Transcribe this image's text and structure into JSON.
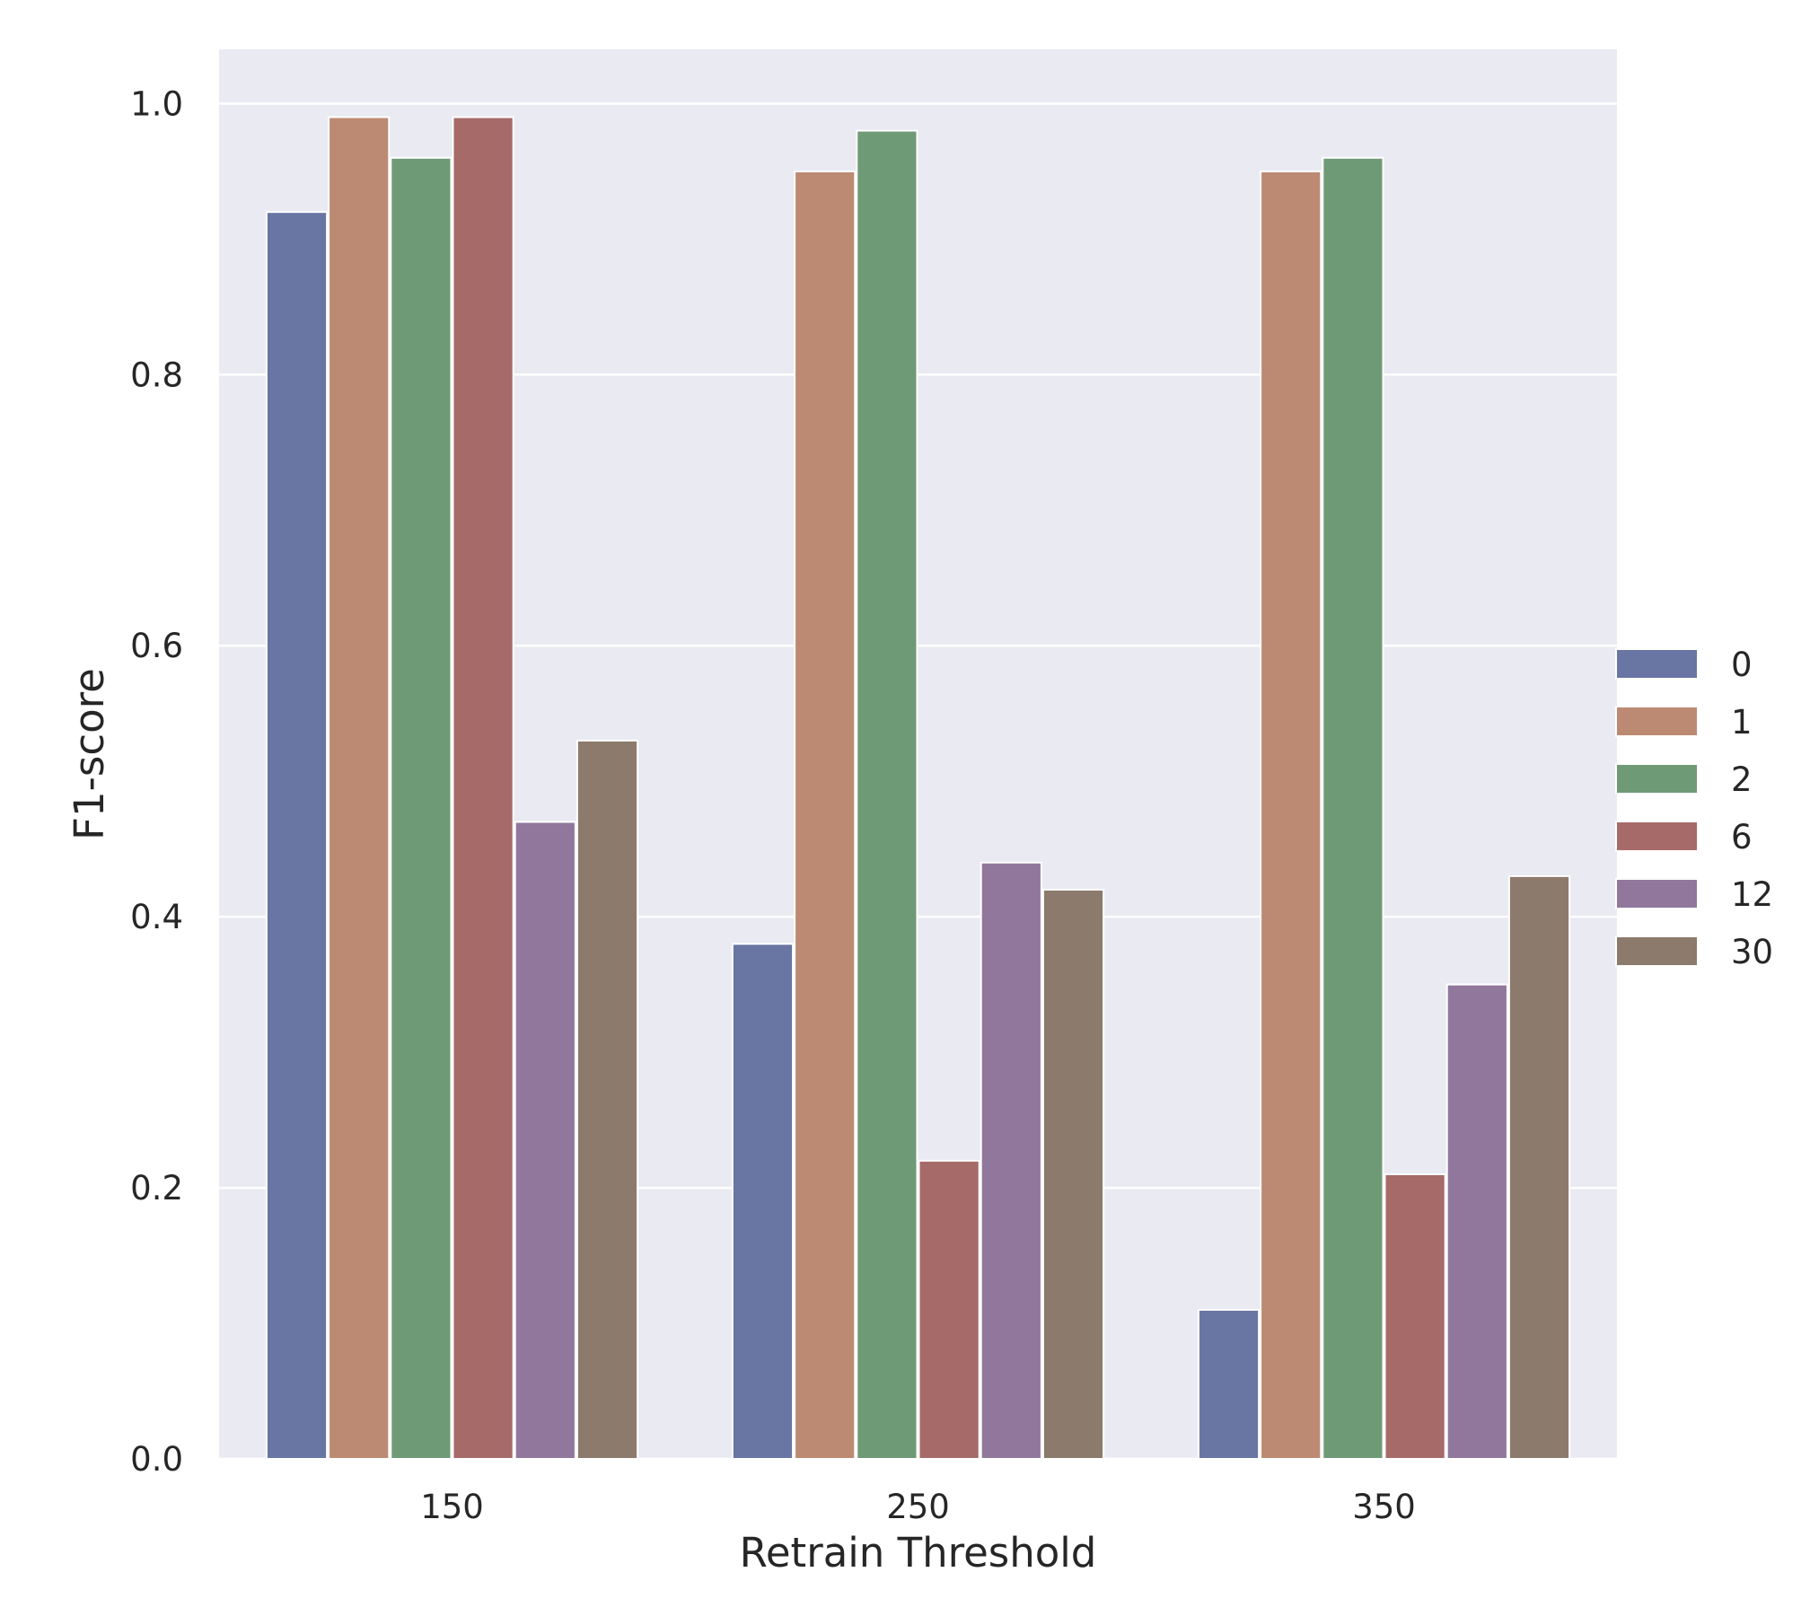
{
  "chart_data": {
    "type": "bar",
    "title": "",
    "xlabel": "Retrain Threshold",
    "ylabel": "F1-score",
    "categories": [
      "150",
      "250",
      "350"
    ],
    "ylim": [
      0,
      1.04
    ],
    "yticks": [
      0.0,
      0.2,
      0.4,
      0.6,
      0.8,
      1.0
    ],
    "ytick_labels": [
      "0.0",
      "0.2",
      "0.4",
      "0.6",
      "0.8",
      "1.0"
    ],
    "grid": true,
    "legend_position": "right",
    "series": [
      {
        "name": "0",
        "color": "#6975a3",
        "values": [
          0.92,
          0.38,
          0.11
        ]
      },
      {
        "name": "1",
        "color": "#bc8a73",
        "values": [
          0.99,
          0.95,
          0.95
        ]
      },
      {
        "name": "2",
        "color": "#6f9a76",
        "values": [
          0.96,
          0.98,
          0.96
        ]
      },
      {
        "name": "6",
        "color": "#a66a69",
        "values": [
          0.99,
          0.22,
          0.21
        ]
      },
      {
        "name": "12",
        "color": "#91779c",
        "values": [
          0.47,
          0.44,
          0.35
        ]
      },
      {
        "name": "30",
        "color": "#8c7a6c",
        "values": [
          0.53,
          0.42,
          0.43
        ]
      }
    ],
    "colors": {
      "plot_background": "#eaeaf2",
      "grid": "#ffffff",
      "text": "#262626"
    }
  }
}
